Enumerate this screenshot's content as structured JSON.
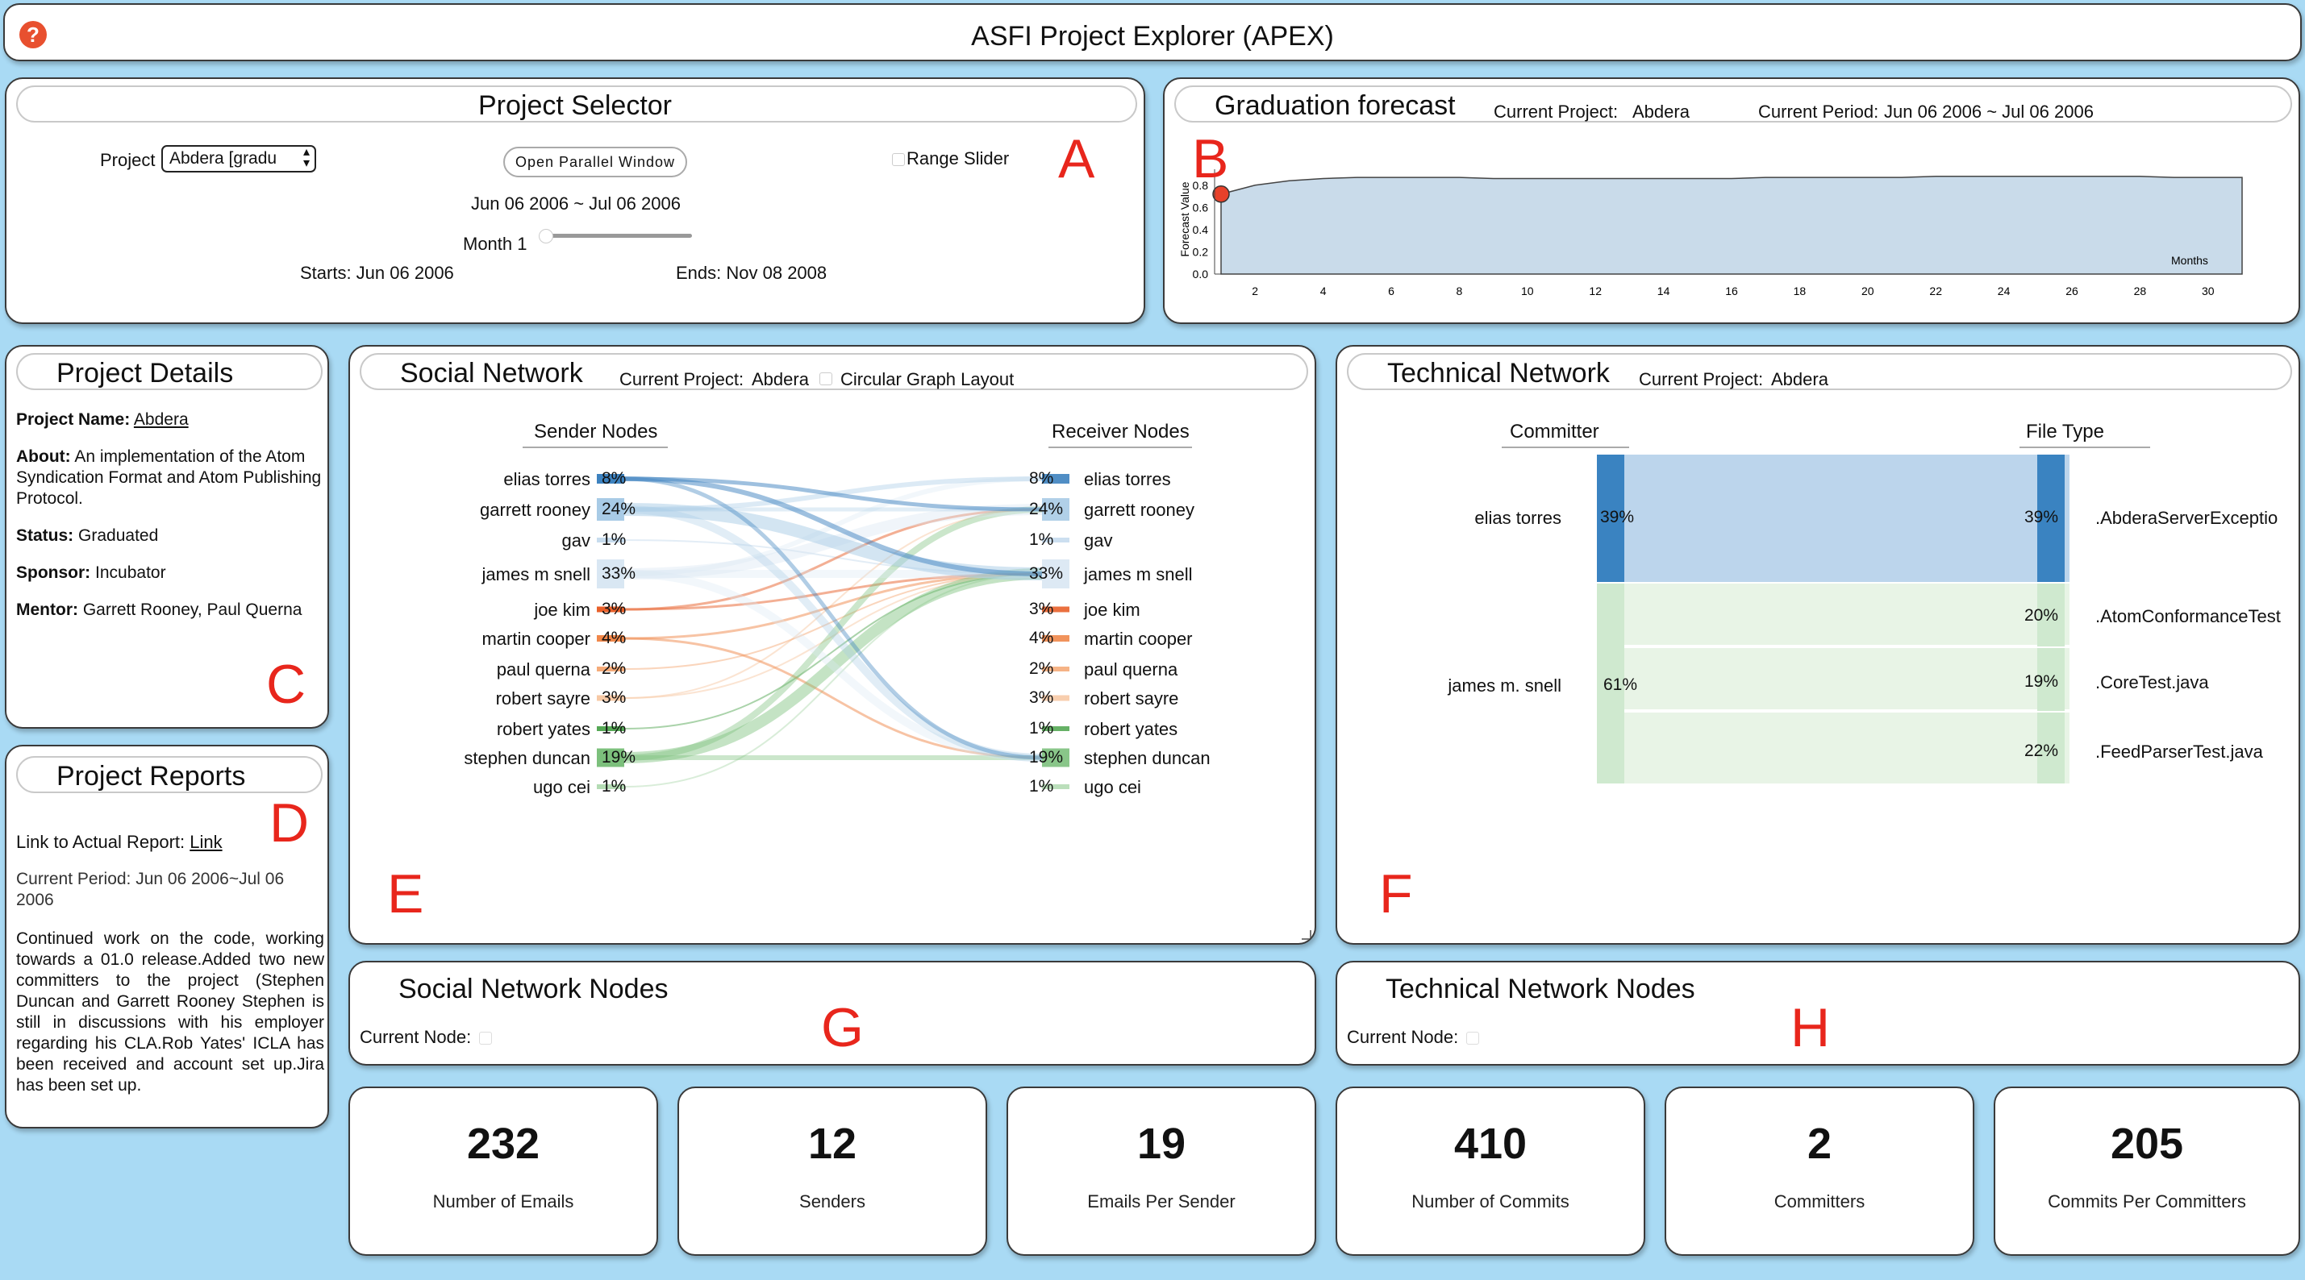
{
  "header": {
    "title": "ASFI Project Explorer (APEX)",
    "help_icon": "question-circle-icon"
  },
  "colors": {
    "accent_red": "#e8261c",
    "bg": "#a9daf4",
    "tech_blue": "#3a83c1",
    "tech_green": "#cfe9cf"
  },
  "annotations": {
    "A": "A",
    "B": "B",
    "C": "C",
    "D": "D",
    "E": "E",
    "F": "F",
    "G": "G",
    "H": "H"
  },
  "project_selector": {
    "title": "Project Selector",
    "project_label": "Project",
    "project_value": "Abdera [gradu",
    "open_parallel_label": "Open Parallel Window",
    "range_slider_label": "Range Slider",
    "period": "Jun 06 2006 ~ Jul 06 2006",
    "month_label": "Month 1",
    "slider_value": 1,
    "starts": "Starts: Jun 06 2006",
    "ends": "Ends: Nov 08 2008"
  },
  "forecast": {
    "title": "Graduation forecast",
    "current_project_label": "Current Project:",
    "current_project": "Abdera",
    "current_period_label": "Current Period:",
    "current_period": "Jun 06 2006 ~ Jul 06 2006",
    "ylabel": "Forecast Value",
    "xlabel": "Months"
  },
  "chart_data": {
    "type": "area",
    "title": "Graduation forecast",
    "xlabel": "Months",
    "ylabel": "Forecast Value",
    "x": [
      1,
      2,
      3,
      4,
      5,
      6,
      7,
      8,
      9,
      10,
      11,
      12,
      13,
      14,
      15,
      16,
      17,
      18,
      19,
      20,
      21,
      22,
      23,
      24,
      25,
      26,
      27,
      28,
      29,
      30,
      31
    ],
    "values": [
      0.72,
      0.8,
      0.84,
      0.86,
      0.87,
      0.87,
      0.87,
      0.87,
      0.86,
      0.86,
      0.86,
      0.86,
      0.86,
      0.86,
      0.86,
      0.86,
      0.87,
      0.87,
      0.87,
      0.87,
      0.87,
      0.88,
      0.88,
      0.88,
      0.88,
      0.88,
      0.88,
      0.88,
      0.87,
      0.87,
      0.87
    ],
    "yticks": [
      "0.0",
      "0.2",
      "0.4",
      "0.6",
      "0.8"
    ],
    "xticks": [
      "2",
      "4",
      "6",
      "8",
      "10",
      "12",
      "14",
      "16",
      "18",
      "20",
      "22",
      "24",
      "26",
      "28",
      "30"
    ],
    "ylim": [
      0,
      0.9
    ],
    "xlim": [
      1,
      31
    ],
    "current_month": 1
  },
  "project_details": {
    "title": "Project Details",
    "name_label": "Project Name:",
    "name": "Abdera",
    "about_label": "About:",
    "about": "An implementation of the Atom Syndication Format and Atom Publishing Protocol.",
    "status_label": "Status:",
    "status": "Graduated",
    "sponsor_label": "Sponsor:",
    "sponsor": "Incubator",
    "mentor_label": "Mentor:",
    "mentor": "Garrett Rooney, Paul Querna"
  },
  "project_reports": {
    "title": "Project Reports",
    "link_prefix": "Link to Actual Report:",
    "link_text": "Link",
    "period_line": "Current Period:  Jun 06 2006~Jul 06 2006",
    "body": "Continued work on the code, working towards a 01.0 release.Added two new committers to the project (Stephen Duncan and Garrett Rooney Stephen is still in discussions with his employer regarding his CLA.Rob Yates' ICLA has been received and account set up.Jira has been set up."
  },
  "social_network": {
    "title": "Social Network",
    "current_project_label": "Current Project:",
    "current_project": "Abdera",
    "circular_label": "Circular Graph Layout",
    "sender_header": "Sender Nodes",
    "receiver_header": "Receiver Nodes",
    "senders": [
      {
        "name": "elias torres",
        "pct": "8%",
        "color": "#3d82bf"
      },
      {
        "name": "garrett rooney",
        "pct": "24%",
        "color": "#a8cbe6"
      },
      {
        "name": "gav",
        "pct": "1%",
        "color": "#c7dcee"
      },
      {
        "name": "james m snell",
        "pct": "33%",
        "color": "#d9e7f3"
      },
      {
        "name": "joe kim",
        "pct": "3%",
        "color": "#e8602a"
      },
      {
        "name": "martin cooper",
        "pct": "4%",
        "color": "#f0874a"
      },
      {
        "name": "paul querna",
        "pct": "2%",
        "color": "#f5ab79"
      },
      {
        "name": "robert sayre",
        "pct": "3%",
        "color": "#f7c9a5"
      },
      {
        "name": "robert yates",
        "pct": "1%",
        "color": "#55a855"
      },
      {
        "name": "stephen duncan",
        "pct": "19%",
        "color": "#7cc07c"
      },
      {
        "name": "ugo cei",
        "pct": "1%",
        "color": "#b4dcb4"
      }
    ],
    "receivers": [
      {
        "name": "elias torres",
        "pct": "8%"
      },
      {
        "name": "garrett rooney",
        "pct": "24%"
      },
      {
        "name": "gav",
        "pct": "1%"
      },
      {
        "name": "james m snell",
        "pct": "33%"
      },
      {
        "name": "joe kim",
        "pct": "3%"
      },
      {
        "name": "martin cooper",
        "pct": "4%"
      },
      {
        "name": "paul querna",
        "pct": "2%"
      },
      {
        "name": "robert sayre",
        "pct": "3%"
      },
      {
        "name": "robert yates",
        "pct": "1%"
      },
      {
        "name": "stephen duncan",
        "pct": "19%"
      },
      {
        "name": "ugo cei",
        "pct": "1%"
      }
    ]
  },
  "technical_network": {
    "title": "Technical Network",
    "current_project_label": "Current Project:",
    "current_project": "Abdera",
    "committer_header": "Committer",
    "filetype_header": "File Type",
    "committers": [
      {
        "name": "elias torres",
        "pct": "39%"
      },
      {
        "name": "james m. snell",
        "pct": "61%"
      }
    ],
    "files": [
      {
        "name": ".AbderaServerExceptio",
        "pct": "39%"
      },
      {
        "name": ".AtomConformanceTest",
        "pct": "20%"
      },
      {
        "name": ".CoreTest.java",
        "pct": "19%"
      },
      {
        "name": ".FeedParserTest.java",
        "pct": "22%"
      }
    ]
  },
  "social_nodes": {
    "title": "Social Network Nodes",
    "current_node_label": "Current Node:"
  },
  "technical_nodes": {
    "title": "Technical Network Nodes",
    "current_node_label": "Current Node:"
  },
  "stats": [
    {
      "value": "232",
      "label": "Number of Emails"
    },
    {
      "value": "12",
      "label": "Senders"
    },
    {
      "value": "19",
      "label": "Emails Per Sender"
    },
    {
      "value": "410",
      "label": "Number of Commits"
    },
    {
      "value": "2",
      "label": "Committers"
    },
    {
      "value": "205",
      "label": "Commits Per Committers"
    }
  ]
}
